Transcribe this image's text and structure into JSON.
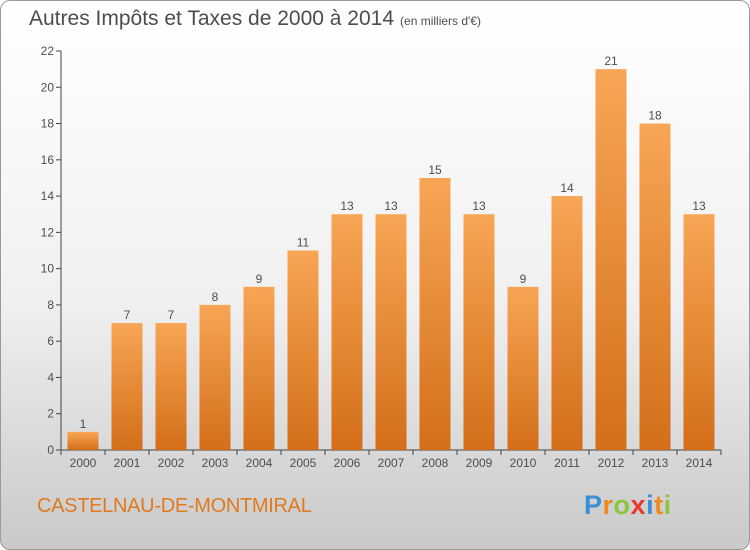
{
  "title": "Autres Impôts et Taxes de 2000 à 2014",
  "subtitle": "(en milliers d'€)",
  "commune": "CASTELNAU-DE-MONTMIRAL",
  "logo": {
    "text": "Proxiti",
    "letters": [
      {
        "ch": "P",
        "color": "#3a8fd6"
      },
      {
        "ch": "r",
        "color": "#f08a1c"
      },
      {
        "ch": "o",
        "color": "#8cc63f"
      },
      {
        "ch": "x",
        "color": "#e8392c"
      },
      {
        "ch": "i",
        "color": "#3a8fd6"
      },
      {
        "ch": "t",
        "color": "#f08a1c"
      },
      {
        "ch": "i",
        "color": "#8cc63f"
      }
    ]
  },
  "colors": {
    "bar_light": "#f7a655",
    "bar_dark": "#d46e18",
    "text": "#4d4d4d",
    "axis": "#444444"
  },
  "chart_data": {
    "type": "bar",
    "categories": [
      "2000",
      "2001",
      "2002",
      "2003",
      "2004",
      "2005",
      "2006",
      "2007",
      "2008",
      "2009",
      "2010",
      "2011",
      "2012",
      "2013",
      "2014"
    ],
    "values": [
      1,
      7,
      7,
      8,
      9,
      11,
      13,
      13,
      15,
      13,
      9,
      14,
      21,
      18,
      13
    ],
    "ylim": [
      0,
      22
    ],
    "yticks": [
      0,
      2,
      4,
      6,
      8,
      10,
      12,
      14,
      16,
      18,
      20,
      22
    ],
    "grid": false,
    "data_labels": true
  }
}
